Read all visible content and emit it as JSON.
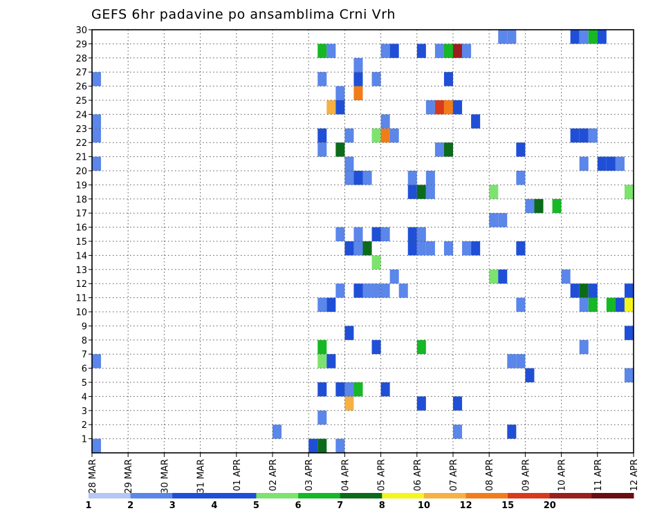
{
  "chart_data": {
    "type": "heatmap",
    "title": "GEFS 6hr padavine po ansamblima Crni Vrh",
    "xlabel": "",
    "ylabel": "",
    "x_tick_labels": [
      "28 MAR",
      "29 MAR",
      "30 MAR",
      "31 MAR",
      "01 APR",
      "02 APR",
      "03 APR",
      "04 APR",
      "05 APR",
      "06 APR",
      "07 APR",
      "08 APR",
      "09 APR",
      "10 APR",
      "11 APR",
      "12 APR"
    ],
    "y_tick_labels": [
      "1",
      "2",
      "3",
      "4",
      "5",
      "6",
      "7",
      "8",
      "9",
      "10",
      "11",
      "12",
      "13",
      "14",
      "15",
      "16",
      "17",
      "18",
      "19",
      "20",
      "21",
      "22",
      "23",
      "24",
      "25",
      "26",
      "27",
      "28",
      "29",
      "30"
    ],
    "xlim": [
      0,
      60
    ],
    "ylim": [
      0,
      30
    ],
    "grid": "dotted",
    "colorbar": {
      "labels": [
        "1",
        "2",
        "3",
        "4",
        "5",
        "6",
        "7",
        "8",
        "10",
        "12",
        "15",
        "20"
      ],
      "colors": [
        "#b4c7f5",
        "#5b86ea",
        "#1f4fd6",
        "#1f4fd6",
        "#7de36f",
        "#16b825",
        "#0b6b1a",
        "#f5f51c",
        "#f6b143",
        "#f27c1a",
        "#d93a1b",
        "#9a1f1f",
        "#6b0d12"
      ]
    },
    "cells": [
      {
        "x": 0,
        "y": 0,
        "c": 1
      },
      {
        "x": 24,
        "y": 0,
        "c": 3
      },
      {
        "x": 25,
        "y": 0,
        "c": 6
      },
      {
        "x": 27,
        "y": 0,
        "c": 1
      },
      {
        "x": 20,
        "y": 1,
        "c": 1
      },
      {
        "x": 40,
        "y": 1,
        "c": 1
      },
      {
        "x": 46,
        "y": 1,
        "c": 2
      },
      {
        "x": 25,
        "y": 2,
        "c": 1
      },
      {
        "x": 28,
        "y": 3,
        "c": 8
      },
      {
        "x": 36,
        "y": 3,
        "c": 2
      },
      {
        "x": 40,
        "y": 3,
        "c": 3
      },
      {
        "x": 25,
        "y": 4,
        "c": 2
      },
      {
        "x": 27,
        "y": 4,
        "c": 3
      },
      {
        "x": 28,
        "y": 4,
        "c": 1
      },
      {
        "x": 29,
        "y": 4,
        "c": 5
      },
      {
        "x": 32,
        "y": 4,
        "c": 3
      },
      {
        "x": 48,
        "y": 5,
        "c": 2
      },
      {
        "x": 59,
        "y": 5,
        "c": 1
      },
      {
        "x": 60,
        "y": 5,
        "c": 4
      },
      {
        "x": 0,
        "y": 6,
        "c": 1
      },
      {
        "x": 25,
        "y": 6,
        "c": 4
      },
      {
        "x": 26,
        "y": 6,
        "c": 3
      },
      {
        "x": 46,
        "y": 6,
        "c": 1
      },
      {
        "x": 47,
        "y": 6,
        "c": 1
      },
      {
        "x": 60,
        "y": 6,
        "c": 1
      },
      {
        "x": 25,
        "y": 7,
        "c": 5
      },
      {
        "x": 31,
        "y": 7,
        "c": 2
      },
      {
        "x": 36,
        "y": 7,
        "c": 5
      },
      {
        "x": 54,
        "y": 7,
        "c": 1
      },
      {
        "x": 28,
        "y": 8,
        "c": 2
      },
      {
        "x": 59,
        "y": 8,
        "c": 2
      },
      {
        "x": 60,
        "y": 8,
        "c": 1
      },
      {
        "x": 61,
        "y": 8,
        "c": 5
      },
      {
        "x": 25,
        "y": 10,
        "c": 1
      },
      {
        "x": 26,
        "y": 10,
        "c": 3
      },
      {
        "x": 47,
        "y": 10,
        "c": 1
      },
      {
        "x": 54,
        "y": 10,
        "c": 1
      },
      {
        "x": 55,
        "y": 10,
        "c": 5
      },
      {
        "x": 57,
        "y": 10,
        "c": 5
      },
      {
        "x": 58,
        "y": 10,
        "c": 2
      },
      {
        "x": 59,
        "y": 10,
        "c": 7
      },
      {
        "x": 60,
        "y": 10,
        "c": 2
      },
      {
        "x": 61,
        "y": 10,
        "c": 1
      },
      {
        "x": 27,
        "y": 11,
        "c": 1
      },
      {
        "x": 29,
        "y": 11,
        "c": 2
      },
      {
        "x": 30,
        "y": 11,
        "c": 1
      },
      {
        "x": 31,
        "y": 11,
        "c": 1
      },
      {
        "x": 32,
        "y": 11,
        "c": 1
      },
      {
        "x": 34,
        "y": 11,
        "c": 1
      },
      {
        "x": 53,
        "y": 11,
        "c": 2
      },
      {
        "x": 54,
        "y": 11,
        "c": 6
      },
      {
        "x": 55,
        "y": 11,
        "c": 2
      },
      {
        "x": 59,
        "y": 11,
        "c": 2
      },
      {
        "x": 33,
        "y": 12,
        "c": 1
      },
      {
        "x": 44,
        "y": 12,
        "c": 4
      },
      {
        "x": 45,
        "y": 12,
        "c": 2
      },
      {
        "x": 52,
        "y": 12,
        "c": 1
      },
      {
        "x": 31,
        "y": 13,
        "c": 4
      },
      {
        "x": 28,
        "y": 14,
        "c": 2
      },
      {
        "x": 29,
        "y": 14,
        "c": 1
      },
      {
        "x": 30,
        "y": 14,
        "c": 6
      },
      {
        "x": 35,
        "y": 14,
        "c": 2
      },
      {
        "x": 36,
        "y": 14,
        "c": 1
      },
      {
        "x": 37,
        "y": 14,
        "c": 1
      },
      {
        "x": 39,
        "y": 14,
        "c": 1
      },
      {
        "x": 41,
        "y": 14,
        "c": 1
      },
      {
        "x": 42,
        "y": 14,
        "c": 3
      },
      {
        "x": 47,
        "y": 14,
        "c": 3
      },
      {
        "x": 60,
        "y": 14,
        "c": 1
      },
      {
        "x": 61,
        "y": 14,
        "c": 3
      },
      {
        "x": 27,
        "y": 15,
        "c": 1
      },
      {
        "x": 29,
        "y": 15,
        "c": 1
      },
      {
        "x": 31,
        "y": 15,
        "c": 2
      },
      {
        "x": 32,
        "y": 15,
        "c": 1
      },
      {
        "x": 35,
        "y": 15,
        "c": 3
      },
      {
        "x": 36,
        "y": 15,
        "c": 1
      },
      {
        "x": 44,
        "y": 16,
        "c": 1
      },
      {
        "x": 45,
        "y": 16,
        "c": 1
      },
      {
        "x": 48,
        "y": 17,
        "c": 1
      },
      {
        "x": 49,
        "y": 17,
        "c": 6
      },
      {
        "x": 51,
        "y": 17,
        "c": 5
      },
      {
        "x": 35,
        "y": 18,
        "c": 2
      },
      {
        "x": 36,
        "y": 18,
        "c": 6
      },
      {
        "x": 37,
        "y": 18,
        "c": 1
      },
      {
        "x": 44,
        "y": 18,
        "c": 4
      },
      {
        "x": 59,
        "y": 18,
        "c": 4
      },
      {
        "x": 60,
        "y": 18,
        "c": 1
      },
      {
        "x": 28,
        "y": 19,
        "c": 1
      },
      {
        "x": 29,
        "y": 19,
        "c": 2
      },
      {
        "x": 30,
        "y": 19,
        "c": 1
      },
      {
        "x": 35,
        "y": 19,
        "c": 1
      },
      {
        "x": 37,
        "y": 19,
        "c": 1
      },
      {
        "x": 47,
        "y": 19,
        "c": 1
      },
      {
        "x": 0,
        "y": 20,
        "c": 1
      },
      {
        "x": 28,
        "y": 20,
        "c": 1
      },
      {
        "x": 54,
        "y": 20,
        "c": 1
      },
      {
        "x": 56,
        "y": 20,
        "c": 2
      },
      {
        "x": 57,
        "y": 20,
        "c": 3
      },
      {
        "x": 58,
        "y": 20,
        "c": 1
      },
      {
        "x": 25,
        "y": 21,
        "c": 1
      },
      {
        "x": 27,
        "y": 21,
        "c": 6
      },
      {
        "x": 38,
        "y": 21,
        "c": 1
      },
      {
        "x": 39,
        "y": 21,
        "c": 6
      },
      {
        "x": 47,
        "y": 21,
        "c": 2
      },
      {
        "x": 0,
        "y": 22,
        "c": 1
      },
      {
        "x": 25,
        "y": 22,
        "c": 2
      },
      {
        "x": 28,
        "y": 22,
        "c": 1
      },
      {
        "x": 31,
        "y": 22,
        "c": 4
      },
      {
        "x": 32,
        "y": 22,
        "c": 9
      },
      {
        "x": 33,
        "y": 22,
        "c": 1
      },
      {
        "x": 53,
        "y": 22,
        "c": 2
      },
      {
        "x": 54,
        "y": 22,
        "c": 3
      },
      {
        "x": 55,
        "y": 22,
        "c": 1
      },
      {
        "x": 0,
        "y": 23,
        "c": 1
      },
      {
        "x": 32,
        "y": 23,
        "c": 1
      },
      {
        "x": 42,
        "y": 23,
        "c": 2
      },
      {
        "x": 26,
        "y": 24,
        "c": 8
      },
      {
        "x": 27,
        "y": 24,
        "c": 2
      },
      {
        "x": 37,
        "y": 24,
        "c": 1
      },
      {
        "x": 38,
        "y": 24,
        "c": 10
      },
      {
        "x": 39,
        "y": 24,
        "c": 9
      },
      {
        "x": 40,
        "y": 24,
        "c": 2
      },
      {
        "x": 27,
        "y": 25,
        "c": 1
      },
      {
        "x": 29,
        "y": 25,
        "c": 9
      },
      {
        "x": 60,
        "y": 25,
        "c": 8
      },
      {
        "x": 0,
        "y": 26,
        "c": 1
      },
      {
        "x": 25,
        "y": 26,
        "c": 1
      },
      {
        "x": 29,
        "y": 26,
        "c": 2
      },
      {
        "x": 31,
        "y": 26,
        "c": 1
      },
      {
        "x": 39,
        "y": 26,
        "c": 2
      },
      {
        "x": 29,
        "y": 27,
        "c": 1
      },
      {
        "x": 25,
        "y": 28,
        "c": 5
      },
      {
        "x": 26,
        "y": 28,
        "c": 1
      },
      {
        "x": 32,
        "y": 28,
        "c": 1
      },
      {
        "x": 33,
        "y": 28,
        "c": 2
      },
      {
        "x": 36,
        "y": 28,
        "c": 2
      },
      {
        "x": 38,
        "y": 28,
        "c": 1
      },
      {
        "x": 39,
        "y": 28,
        "c": 5
      },
      {
        "x": 40,
        "y": 28,
        "c": 11
      },
      {
        "x": 41,
        "y": 28,
        "c": 1
      },
      {
        "x": 45,
        "y": 29,
        "c": 1
      },
      {
        "x": 46,
        "y": 29,
        "c": 1
      },
      {
        "x": 53,
        "y": 29,
        "c": 2
      },
      {
        "x": 54,
        "y": 29,
        "c": 1
      },
      {
        "x": 55,
        "y": 29,
        "c": 5
      },
      {
        "x": 56,
        "y": 29,
        "c": 3
      },
      {
        "x": 61,
        "y": 29,
        "c": 3
      }
    ]
  }
}
